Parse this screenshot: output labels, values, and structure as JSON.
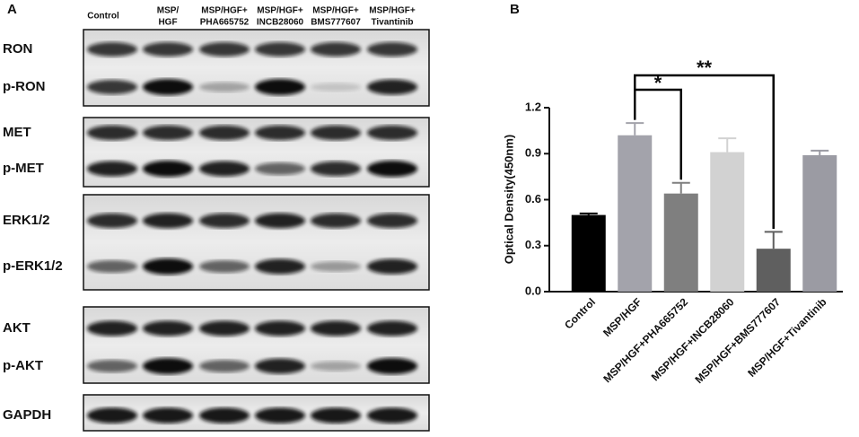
{
  "panel_a": {
    "label": "A",
    "lanes": [
      [
        "Control"
      ],
      [
        "MSP/",
        "HGF"
      ],
      [
        "MSP/HGF+",
        "PHA665752"
      ],
      [
        "MSP/HGF+",
        "INCB28060"
      ],
      [
        "MSP/HGF+",
        "BMS777607"
      ],
      [
        "MSP/HGF+",
        "Tivantinib"
      ]
    ],
    "rows": [
      "RON",
      "p-RON",
      "MET",
      "p-MET",
      "ERK1/2",
      "p-ERK1/2",
      "AKT",
      "p-AKT",
      "GAPDH"
    ]
  },
  "chart_data": {
    "type": "bar",
    "panel_label": "B",
    "y_label": "Optical Density(450nm)",
    "categories": [
      "Control",
      "MSP/HGF",
      "MSP/HGF+PHA665752",
      "MSP/HGF+INCB28060",
      "MSP/HGF+BMS777607",
      "MSP/HGF+Tivantinib"
    ],
    "values": [
      0.5,
      1.02,
      0.64,
      0.91,
      0.28,
      0.89
    ],
    "errors": [
      0.01,
      0.08,
      0.07,
      0.09,
      0.11,
      0.03
    ],
    "colors": [
      "#000000",
      "#a3a3ab",
      "#7f7f7f",
      "#d2d2d2",
      "#5f5f5f",
      "#9b9ba3"
    ],
    "ylim": [
      0,
      1.2
    ],
    "yticks": [
      {
        "value": 0,
        "label": "0.0"
      },
      0.3,
      0.6,
      0.9,
      1.2
    ],
    "annotations": [
      "*",
      "**"
    ]
  }
}
